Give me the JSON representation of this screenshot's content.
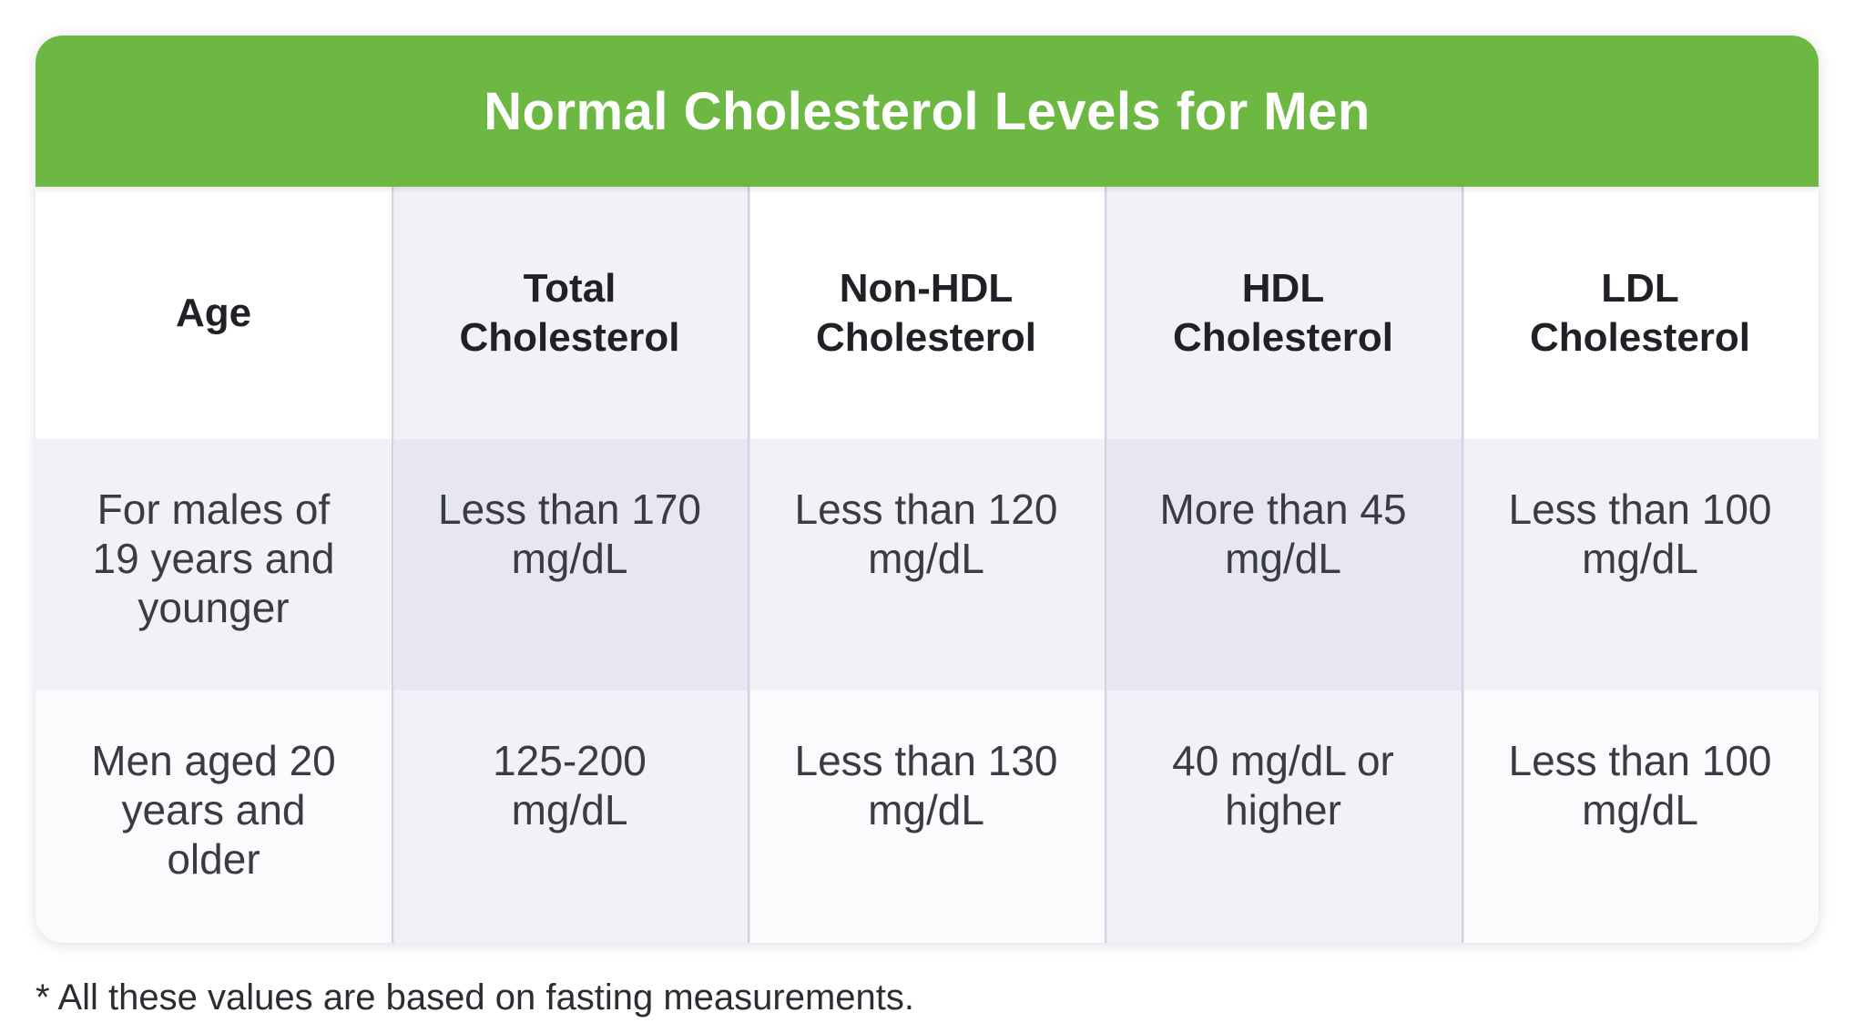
{
  "title": "Normal Cholesterol Levels for Men",
  "colors": {
    "banner": "#6cb843",
    "banner_text": "#ffffff",
    "shaded_column": "#f1f2f8",
    "shaded_row": "#f1f2f8"
  },
  "table": {
    "headers": [
      [
        "Age"
      ],
      [
        "Total",
        "Cholesterol"
      ],
      [
        "Non-HDL",
        "Cholesterol"
      ],
      [
        "HDL",
        "Cholesterol"
      ],
      [
        "LDL",
        "Cholesterol"
      ]
    ],
    "rows": [
      [
        [
          "For males of",
          "19 years and",
          "younger"
        ],
        [
          "Less than 170",
          "mg/dL"
        ],
        [
          "Less than 120",
          "mg/dL"
        ],
        [
          "More than 45",
          "mg/dL"
        ],
        [
          "Less than 100",
          "mg/dL"
        ]
      ],
      [
        [
          "Men aged 20",
          "years and",
          "older"
        ],
        [
          "125-200",
          "mg/dL"
        ],
        [
          "Less than 130",
          "mg/dL"
        ],
        [
          "40 mg/dL or",
          "higher"
        ],
        [
          "Less than 100",
          "mg/dL"
        ]
      ]
    ]
  },
  "footnote": "* All these values are based on fasting measurements."
}
